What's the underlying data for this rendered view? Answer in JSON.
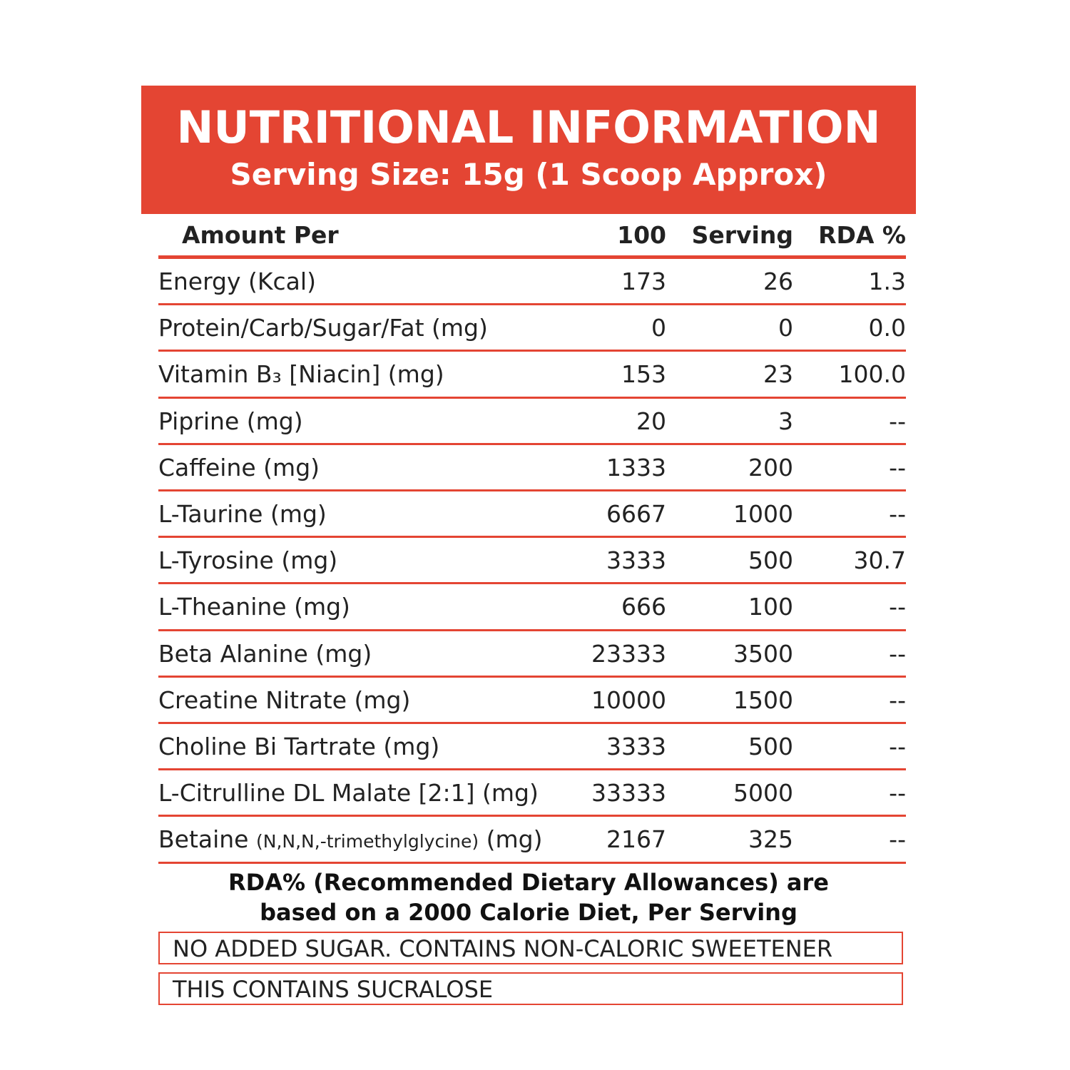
{
  "header": {
    "title": "NUTRITIONAL INFORMATION",
    "subtitle": "Serving Size: 15g (1 Scoop Approx)"
  },
  "table": {
    "columns": [
      "Amount Per",
      "100",
      "Serving",
      "RDA %"
    ],
    "rows": [
      {
        "label": "Energy (Kcal)",
        "per100": "173",
        "serving": "26",
        "rda": "1.3"
      },
      {
        "label": "Protein/Carb/Sugar/Fat (mg)",
        "per100": "0",
        "serving": "0",
        "rda": "0.0"
      },
      {
        "label": "Vitamin B₃ [Niacin] (mg)",
        "per100": "153",
        "serving": "23",
        "rda": "100.0"
      },
      {
        "label": "Piprine (mg)",
        "per100": "20",
        "serving": "3",
        "rda": "--"
      },
      {
        "label": "Caffeine (mg)",
        "per100": "1333",
        "serving": "200",
        "rda": "--"
      },
      {
        "label": "L-Taurine (mg)",
        "per100": "6667",
        "serving": "1000",
        "rda": "--"
      },
      {
        "label": "L-Tyrosine (mg)",
        "per100": "3333",
        "serving": "500",
        "rda": "30.7"
      },
      {
        "label": "L-Theanine (mg)",
        "per100": "666",
        "serving": "100",
        "rda": "--"
      },
      {
        "label": "Beta Alanine (mg)",
        "per100": "23333",
        "serving": "3500",
        "rda": "--"
      },
      {
        "label": "Creatine Nitrate (mg)",
        "per100": "10000",
        "serving": "1500",
        "rda": "--"
      },
      {
        "label": "Choline Bi Tartrate (mg)",
        "per100": "3333",
        "serving": "500",
        "rda": "--"
      },
      {
        "label": "L-Citrulline DL Malate [2:1] (mg)",
        "per100": "33333",
        "serving": "5000",
        "rda": "--"
      },
      {
        "label": "Betaine",
        "label_note": "(N,N,N,-trimethylglycine)",
        "label_unit": "(mg)",
        "per100": "2167",
        "serving": "325",
        "rda": "--"
      }
    ]
  },
  "footnote": [
    "RDA% (Recommended Dietary Allowances) are",
    "based on a 2000 Calorie Diet, Per Serving"
  ],
  "notices": [
    "NO ADDED SUGAR. CONTAINS NON-CALORIC SWEETENER",
    "THIS CONTAINS SUCRALOSE"
  ]
}
